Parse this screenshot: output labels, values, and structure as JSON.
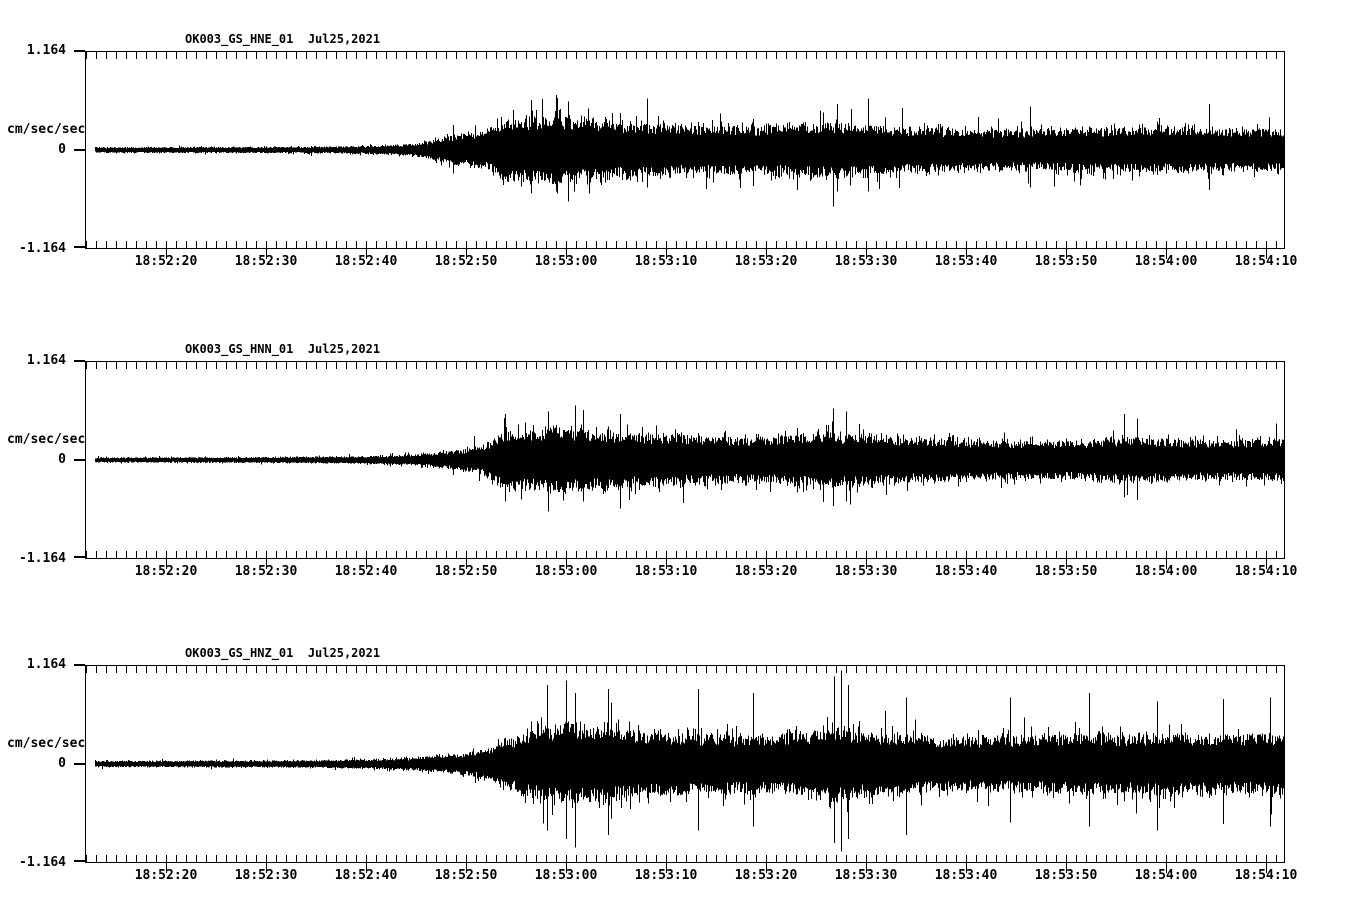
{
  "figure": {
    "background": "#ffffff",
    "trace_color": "#000000",
    "axis_color": "#000000"
  },
  "chart_data": [
    {
      "type": "line",
      "kind": "seismogram",
      "title": "OK003_GS_HNE_01  Jul25,2021",
      "station_channel": "OK003_GS_HNE_01",
      "date_label": "Jul25,2021",
      "ylabel": "cm/sec/sec",
      "ylim": [
        -1.164,
        1.164
      ],
      "y_tick_labels": [
        "1.164",
        "0",
        "-1.164"
      ],
      "x_start_time": "18:52:12",
      "x_end_time": "18:54:12",
      "seconds_per_minor_tick": 1,
      "seconds_per_major_tick": 10,
      "x_tick_labels": [
        "18:52:20",
        "18:52:30",
        "18:52:40",
        "18:52:50",
        "18:53:00",
        "18:53:10",
        "18:53:20",
        "18:53:30",
        "18:53:40",
        "18:53:50",
        "18:54:00",
        "18:54:10"
      ],
      "seed": 11725,
      "envelope_cm_s2": [
        [
          0,
          0.045
        ],
        [
          15,
          0.048
        ],
        [
          24,
          0.055
        ],
        [
          29,
          0.07
        ],
        [
          33,
          0.1
        ],
        [
          35,
          0.17
        ],
        [
          37,
          0.24
        ],
        [
          39,
          0.28
        ],
        [
          40.5,
          0.33
        ],
        [
          41.5,
          0.5
        ],
        [
          44,
          0.52
        ],
        [
          47,
          0.55
        ],
        [
          50,
          0.5
        ],
        [
          54,
          0.44
        ],
        [
          58,
          0.41
        ],
        [
          63,
          0.39
        ],
        [
          68,
          0.38
        ],
        [
          72,
          0.43
        ],
        [
          76,
          0.44
        ],
        [
          80,
          0.38
        ],
        [
          85,
          0.35
        ],
        [
          90,
          0.33
        ],
        [
          95,
          0.33
        ],
        [
          100,
          0.35
        ],
        [
          105,
          0.36
        ],
        [
          110,
          0.36
        ],
        [
          115,
          0.34
        ],
        [
          120,
          0.35
        ]
      ],
      "peak_spikes": [
        [
          36.8,
          0.3,
          0.28
        ],
        [
          44.6,
          0.6,
          0.52
        ],
        [
          47.1,
          0.66,
          0.5
        ],
        [
          48.3,
          0.58,
          0.62
        ],
        [
          56.2,
          0.62,
          0.45
        ],
        [
          75.2,
          0.55,
          0.5
        ],
        [
          78.3,
          0.62,
          0.5
        ],
        [
          94.5,
          0.52,
          0.45
        ],
        [
          112.4,
          0.55,
          0.48
        ]
      ]
    },
    {
      "type": "line",
      "kind": "seismogram",
      "title": "OK003_GS_HNN_01  Jul25,2021",
      "station_channel": "OK003_GS_HNN_01",
      "date_label": "Jul25,2021",
      "ylabel": "cm/sec/sec",
      "ylim": [
        -1.164,
        1.164
      ],
      "y_tick_labels": [
        "1.164",
        "0",
        "-1.164"
      ],
      "x_start_time": "18:52:12",
      "x_end_time": "18:54:12",
      "seconds_per_minor_tick": 1,
      "seconds_per_major_tick": 10,
      "x_tick_labels": [
        "18:52:20",
        "18:52:30",
        "18:52:40",
        "18:52:50",
        "18:53:00",
        "18:53:10",
        "18:53:20",
        "18:53:30",
        "18:53:40",
        "18:53:50",
        "18:54:00",
        "18:54:10"
      ],
      "seed": 21725,
      "envelope_cm_s2": [
        [
          0,
          0.04
        ],
        [
          15,
          0.045
        ],
        [
          25,
          0.055
        ],
        [
          30,
          0.07
        ],
        [
          33,
          0.09
        ],
        [
          36,
          0.13
        ],
        [
          38,
          0.18
        ],
        [
          40,
          0.25
        ],
        [
          41.5,
          0.46
        ],
        [
          44,
          0.5
        ],
        [
          48,
          0.52
        ],
        [
          52,
          0.47
        ],
        [
          56,
          0.43
        ],
        [
          60,
          0.4
        ],
        [
          65,
          0.37
        ],
        [
          70,
          0.39
        ],
        [
          74,
          0.46
        ],
        [
          77,
          0.42
        ],
        [
          81,
          0.37
        ],
        [
          86,
          0.34
        ],
        [
          91,
          0.31
        ],
        [
          96,
          0.3
        ],
        [
          101,
          0.33
        ],
        [
          105,
          0.37
        ],
        [
          109,
          0.34
        ],
        [
          113,
          0.32
        ],
        [
          117,
          0.33
        ],
        [
          120,
          0.33
        ]
      ],
      "peak_spikes": [
        [
          42.0,
          0.55,
          0.5
        ],
        [
          46.3,
          0.58,
          0.62
        ],
        [
          49.8,
          0.6,
          0.5
        ],
        [
          53.5,
          0.55,
          0.58
        ],
        [
          74.8,
          0.62,
          0.55
        ],
        [
          76.1,
          0.58,
          0.5
        ],
        [
          103.9,
          0.55,
          0.45
        ],
        [
          105.2,
          0.5,
          0.48
        ]
      ]
    },
    {
      "type": "line",
      "kind": "seismogram",
      "title": "OK003_GS_HNZ_01  Jul25,2021",
      "station_channel": "OK003_GS_HNZ_01",
      "date_label": "Jul25,2021",
      "ylabel": "cm/sec/sec",
      "ylim": [
        -1.164,
        1.164
      ],
      "y_tick_labels": [
        "1.164",
        "0",
        "-1.164"
      ],
      "x_start_time": "18:52:12",
      "x_end_time": "18:54:12",
      "seconds_per_minor_tick": 1,
      "seconds_per_major_tick": 10,
      "x_tick_labels": [
        "18:52:20",
        "18:52:30",
        "18:52:40",
        "18:52:50",
        "18:53:00",
        "18:53:10",
        "18:53:20",
        "18:53:30",
        "18:53:40",
        "18:53:50",
        "18:54:00",
        "18:54:10"
      ],
      "seed": 31725,
      "envelope_cm_s2": [
        [
          0,
          0.05
        ],
        [
          15,
          0.055
        ],
        [
          22,
          0.06
        ],
        [
          28,
          0.075
        ],
        [
          32,
          0.095
        ],
        [
          35,
          0.13
        ],
        [
          38,
          0.18
        ],
        [
          40,
          0.24
        ],
        [
          42,
          0.38
        ],
        [
          44,
          0.5
        ],
        [
          46,
          0.6
        ],
        [
          48,
          0.66
        ],
        [
          51,
          0.6
        ],
        [
          55,
          0.54
        ],
        [
          59,
          0.5
        ],
        [
          64,
          0.47
        ],
        [
          68,
          0.46
        ],
        [
          72,
          0.52
        ],
        [
          75,
          0.64
        ],
        [
          77,
          0.56
        ],
        [
          80,
          0.48
        ],
        [
          85,
          0.44
        ],
        [
          90,
          0.43
        ],
        [
          95,
          0.46
        ],
        [
          100,
          0.49
        ],
        [
          104,
          0.47
        ],
        [
          108,
          0.48
        ],
        [
          112,
          0.47
        ],
        [
          116,
          0.48
        ],
        [
          120,
          0.49
        ]
      ],
      "peak_spikes": [
        [
          46.2,
          0.95,
          0.8
        ],
        [
          48.1,
          1.0,
          0.9
        ],
        [
          49.0,
          0.85,
          1.0
        ],
        [
          52.3,
          0.9,
          0.85
        ],
        [
          61.3,
          0.9,
          0.8
        ],
        [
          66.8,
          0.85,
          0.75
        ],
        [
          74.9,
          1.05,
          0.95
        ],
        [
          75.6,
          1.12,
          1.05
        ],
        [
          76.3,
          0.95,
          0.9
        ],
        [
          82.1,
          0.8,
          0.85
        ],
        [
          92.5,
          0.8,
          0.7
        ],
        [
          100.4,
          0.85,
          0.75
        ],
        [
          107.2,
          0.75,
          0.8
        ],
        [
          113.8,
          0.78,
          0.72
        ],
        [
          118.5,
          0.8,
          0.75
        ]
      ]
    }
  ]
}
